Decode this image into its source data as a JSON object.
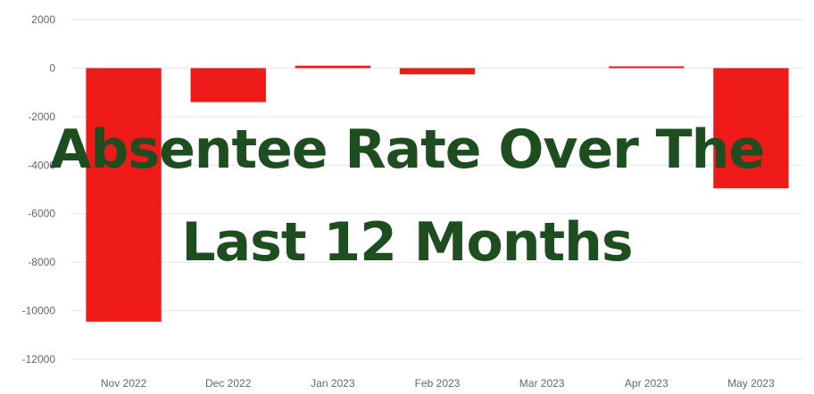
{
  "overlay": {
    "line1": "Absentee Rate Over The",
    "line2": "Last 12 Months"
  },
  "colors": {
    "bar": "#ee1a1a",
    "title": "#1e4d20",
    "grid": "#e6e6e6",
    "tick_text": "#666666"
  },
  "chart_data": {
    "type": "bar",
    "categories": [
      "Nov 2022",
      "Dec 2022",
      "Jan 2023",
      "Feb 2023",
      "Mar 2023",
      "Apr 2023",
      "May 2023"
    ],
    "series": [
      {
        "values": [
          -10450,
          -1400,
          100,
          -250,
          0,
          50,
          -4950
        ]
      }
    ],
    "y_ticks": [
      "2000",
      "0",
      "-2000",
      "-4000",
      "-6000",
      "-8000",
      "-10000",
      "-12000"
    ],
    "ylim": [
      -12000,
      2000
    ],
    "grid": true,
    "title": "",
    "xlabel": "",
    "ylabel": ""
  }
}
